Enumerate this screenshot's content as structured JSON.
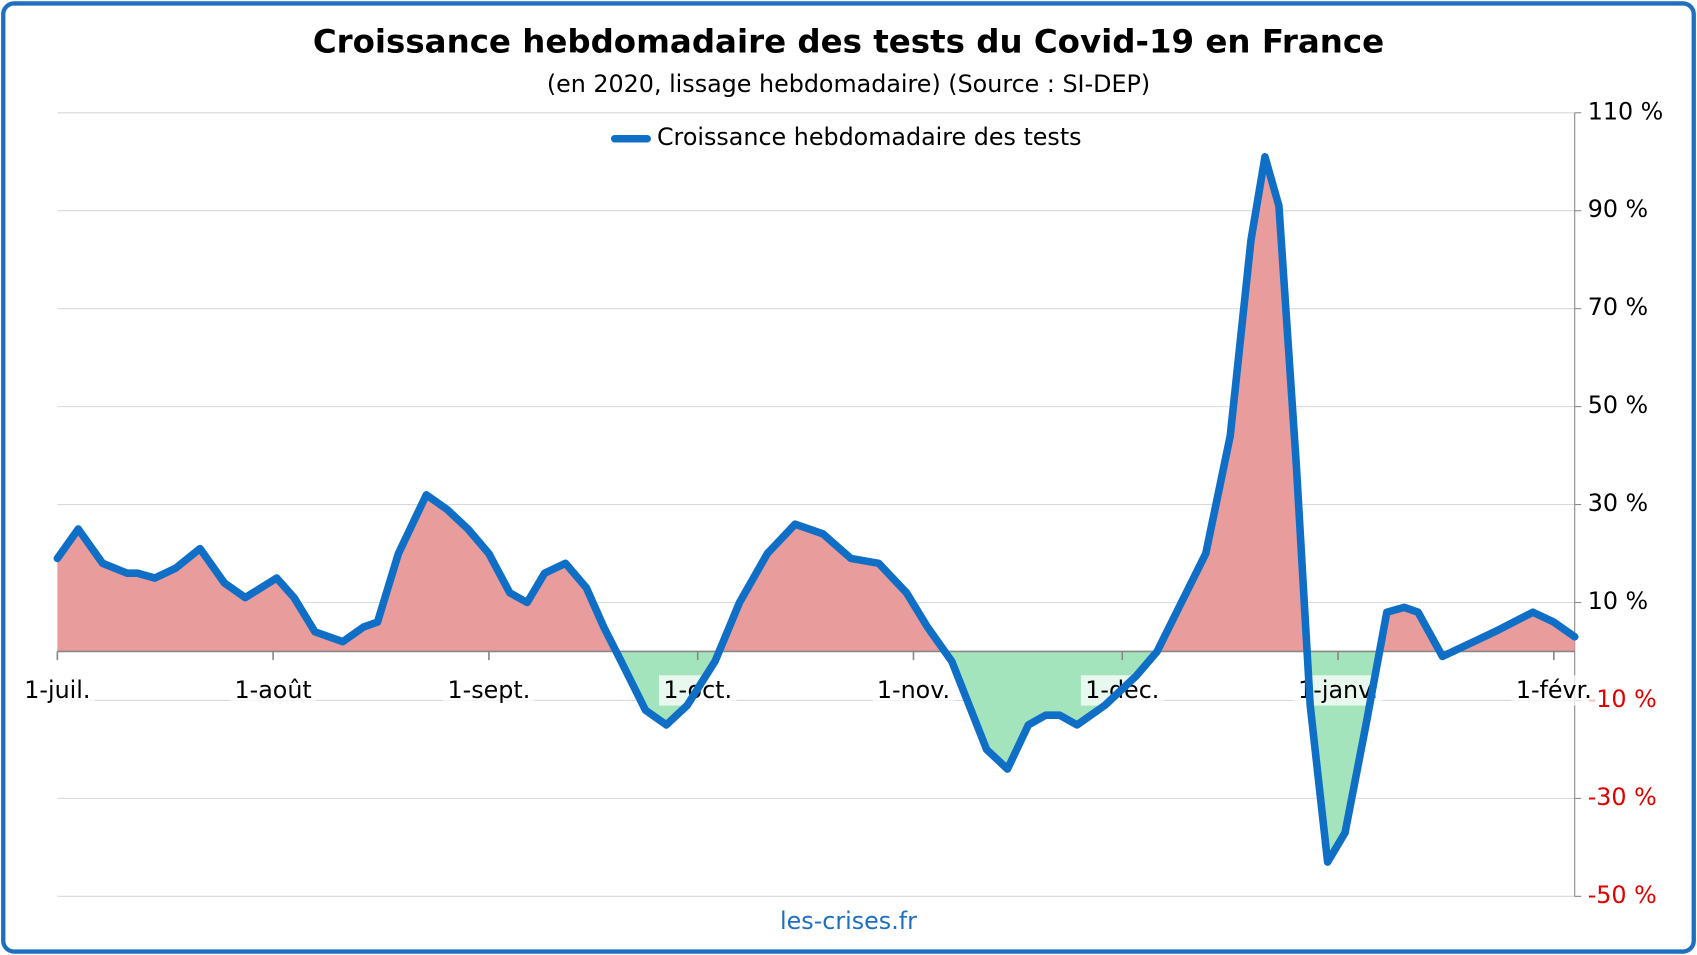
{
  "chart_data": {
    "type": "area-line",
    "title": "Croissance hebdomadaire des tests du Covid-19 en France",
    "subtitle": "(en 2020, lissage hebdomadaire) (Source : SI-DEP)",
    "source": "les-crises.fr",
    "x": [
      0,
      3,
      6.5,
      10,
      11.5,
      14,
      17,
      20.5,
      24,
      27,
      31.5,
      34,
      37,
      41,
      44,
      46,
      49,
      53,
      56,
      59,
      62,
      65,
      67.5,
      70,
      73,
      76,
      78.5,
      81,
      84.5,
      87.5,
      90.5,
      94.5,
      98,
      102,
      106,
      110,
      114,
      118,
      122,
      125,
      128.5,
      133.5,
      136.5,
      139.5,
      142,
      144,
      146.5,
      150.5,
      155,
      158,
      161.5,
      165,
      168.5,
      171.5,
      173.5,
      175.5,
      178,
      180,
      182.5,
      185,
      188,
      191,
      193.5,
      195.5,
      199,
      202,
      206.5,
      212,
      215,
      218
    ],
    "series": [
      {
        "name": "Croissance hebdomadaire des tests",
        "color": "#0f6fc6",
        "values": [
          19,
          25,
          18,
          16,
          16,
          15,
          17,
          21,
          14,
          11,
          15,
          11,
          4,
          2,
          5,
          6,
          20,
          32,
          29,
          25,
          20,
          12,
          10,
          16,
          18,
          13,
          5,
          -2,
          -12,
          -15,
          -11,
          -2,
          10,
          20,
          26,
          24,
          19,
          18,
          12,
          5,
          -2,
          -20,
          -24,
          -15,
          -13,
          -13,
          -15,
          -11,
          -5,
          0,
          10,
          20,
          44,
          84,
          101,
          91,
          38,
          -11,
          -43,
          -37,
          -15,
          8,
          9,
          8,
          -1,
          1,
          4,
          8,
          6,
          3
        ]
      }
    ],
    "positive_fill": "#e89c9c",
    "negative_fill": "#a3e4bd",
    "negative_label_color": "#e00000",
    "xlim": [
      0,
      218
    ],
    "xticks": [
      {
        "value": 0,
        "label": "1-juil."
      },
      {
        "value": 31,
        "label": "1-août"
      },
      {
        "value": 62,
        "label": "1-sept."
      },
      {
        "value": 92,
        "label": "1-oct."
      },
      {
        "value": 123,
        "label": "1-nov."
      },
      {
        "value": 153,
        "label": "1-déc."
      },
      {
        "value": 184,
        "label": "1-janv."
      },
      {
        "value": 215,
        "label": "1-févr."
      }
    ],
    "ylim": [
      -50,
      110
    ],
    "yticks": [
      {
        "value": -50,
        "label": "-50 %"
      },
      {
        "value": -30,
        "label": "-30 %"
      },
      {
        "value": -10,
        "label": "-10 %"
      },
      {
        "value": 10,
        "label": "10 %"
      },
      {
        "value": 30,
        "label": "30 %"
      },
      {
        "value": 50,
        "label": "50 %"
      },
      {
        "value": 70,
        "label": "70 %"
      },
      {
        "value": 90,
        "label": "90 %"
      },
      {
        "value": 110,
        "label": "110 %"
      }
    ],
    "grid": true
  }
}
